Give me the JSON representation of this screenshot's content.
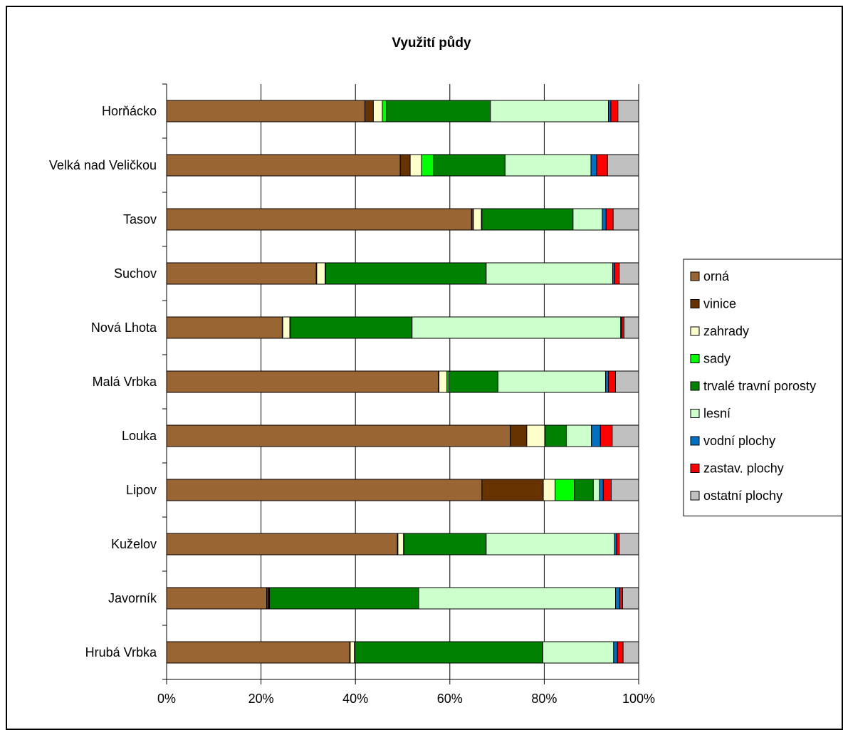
{
  "chart_data": {
    "type": "bar",
    "orientation": "horizontal",
    "stacked": "percent",
    "title": "Využití půdy",
    "xlabel": "",
    "ylabel": "",
    "xlim": [
      0,
      100
    ],
    "x_ticks": [
      "0%",
      "20%",
      "40%",
      "60%",
      "80%",
      "100%"
    ],
    "grid": true,
    "legend_position": "right",
    "categories": [
      "Horňácko",
      "Velká nad Veličkou",
      "Tasov",
      "Suchov",
      "Nová Lhota",
      "Malá Vrbka",
      "Louka",
      "Lipov",
      "Kuželov",
      "Javorník",
      "Hrubá Vrbka"
    ],
    "series": [
      {
        "name": "orná",
        "color": "#996633",
        "values": [
          42.0,
          49.5,
          64.6,
          31.7,
          24.5,
          57.6,
          72.8,
          66.8,
          48.9,
          21.2,
          38.8
        ]
      },
      {
        "name": "vinice",
        "color": "#663300",
        "values": [
          1.8,
          2.1,
          0.4,
          0.1,
          0.1,
          0.1,
          3.5,
          13.0,
          0.1,
          0.4,
          0.1
        ]
      },
      {
        "name": "zahrady",
        "color": "#ffffcc",
        "values": [
          1.9,
          2.4,
          1.7,
          1.8,
          1.5,
          1.7,
          3.8,
          2.5,
          1.2,
          0.1,
          0.9
        ]
      },
      {
        "name": "sady",
        "color": "#00ff00",
        "values": [
          0.9,
          2.6,
          0.1,
          0.1,
          0.1,
          0.4,
          0.1,
          4.1,
          0.1,
          0.1,
          0.1
        ]
      },
      {
        "name": "trvalé travní porosty",
        "color": "#008000",
        "values": [
          22.0,
          15.1,
          19.3,
          34.0,
          25.8,
          10.4,
          4.5,
          4.0,
          17.4,
          31.6,
          39.8
        ]
      },
      {
        "name": "lesní",
        "color": "#ccffcc",
        "values": [
          25.0,
          18.2,
          6.2,
          26.8,
          44.2,
          22.8,
          5.3,
          1.3,
          27.2,
          41.7,
          15.0
        ]
      },
      {
        "name": "vodní plochy",
        "color": "#0070c0",
        "values": [
          0.5,
          1.2,
          0.8,
          0.4,
          0.2,
          0.6,
          1.9,
          0.8,
          0.4,
          0.9,
          0.8
        ]
      },
      {
        "name": "zastav. plochy",
        "color": "#ff0000",
        "values": [
          1.5,
          2.3,
          1.5,
          1.0,
          0.5,
          1.5,
          2.5,
          1.7,
          0.6,
          0.6,
          1.2
        ]
      },
      {
        "name": "ostatní plochy",
        "color": "#c0c0c0",
        "values": [
          4.4,
          6.6,
          5.4,
          4.1,
          3.1,
          4.9,
          5.6,
          5.8,
          4.1,
          3.4,
          3.3
        ]
      }
    ]
  }
}
